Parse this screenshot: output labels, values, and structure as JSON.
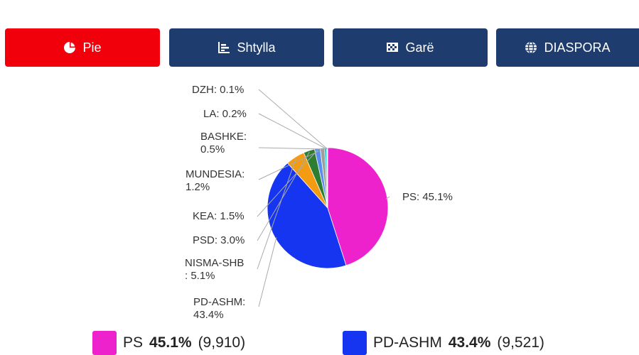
{
  "tabs": [
    {
      "label": "Pie",
      "icon": "pie-chart-icon",
      "active": true,
      "color": "#f1000c"
    },
    {
      "label": "Shtylla",
      "icon": "bar-chart-icon",
      "active": false,
      "color": "#1f3c6e"
    },
    {
      "label": "Garë",
      "icon": "race-flag-icon",
      "active": false,
      "color": "#1f3c6e"
    },
    {
      "label": "DIASPORA",
      "icon": "globe-icon",
      "active": false,
      "color": "#1f3c6e"
    }
  ],
  "chart_data": {
    "type": "pie",
    "slices": [
      {
        "label": "PS",
        "value": 45.1,
        "label_text": "PS: 45.1%",
        "color": "#ee22cc"
      },
      {
        "label": "PD-ASHM",
        "value": 43.4,
        "label_text": "PD-ASHM: 43.4%",
        "color": "#1535f0"
      },
      {
        "label": "NISMA-SHB",
        "value": 5.1,
        "label_text": "NISMA-SHB : 5.1%",
        "color": "#f39c12"
      },
      {
        "label": "PSD",
        "value": 3.0,
        "label_text": "PSD: 3.0%",
        "color": "#2e7d32"
      },
      {
        "label": "KEA",
        "value": 1.5,
        "label_text": "KEA: 1.5%",
        "color": "#5b8def"
      },
      {
        "label": "MUNDESIA",
        "value": 1.2,
        "label_text": "MUNDESIA: 1.2%",
        "color": "#9e9e9e"
      },
      {
        "label": "BASHKE",
        "value": 0.5,
        "label_text": "BASHKE: 0.5%",
        "color": "#00bcd4"
      },
      {
        "label": "LA",
        "value": 0.2,
        "label_text": "LA: 0.2%",
        "color": "#8d6e63"
      },
      {
        "label": "DZH",
        "value": 0.1,
        "label_text": "DZH: 0.1%",
        "color": "#f5a623"
      }
    ]
  },
  "legend": [
    {
      "name": "PS",
      "percent": "45.1%",
      "count": "(9,910)",
      "color": "#ee22cc"
    },
    {
      "name": "PD-ASHM",
      "percent": "43.4%",
      "count": "(9,521)",
      "color": "#1535f0"
    }
  ]
}
